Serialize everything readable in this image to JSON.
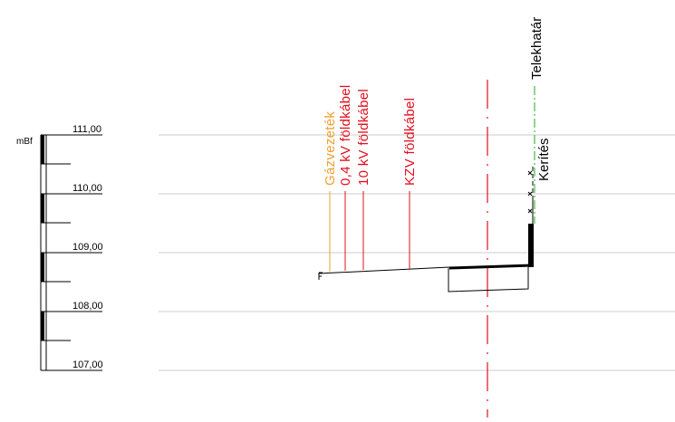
{
  "unit_label": "mBf",
  "elevations": [
    "111,00",
    "110,00",
    "109,00",
    "108,00",
    "107,00"
  ],
  "utilities": [
    {
      "label": "Gázvezeték",
      "color": "#f0a030"
    },
    {
      "label": "0,4 kV földkábel",
      "color": "#e0101e"
    },
    {
      "label": "10 kV földkábel",
      "color": "#e0101e"
    },
    {
      "label": "KZV földkábel",
      "color": "#e0101e"
    }
  ],
  "boundary_labels": {
    "property_line": "Telekhatár",
    "fence": "Kerítés"
  },
  "colors": {
    "grid": "#cccccc",
    "axis_line": "#e0101e",
    "property_line": "#22aa22",
    "ink": "#000000"
  }
}
